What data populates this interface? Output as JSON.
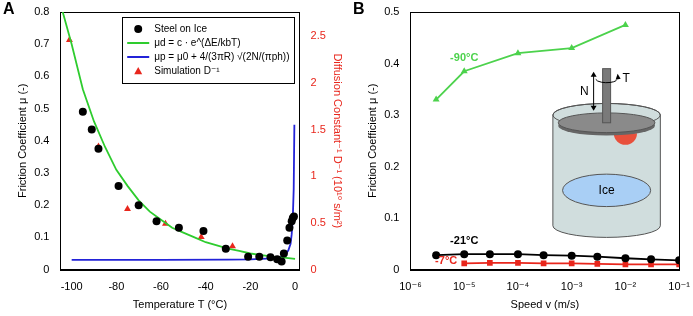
{
  "chart_data": [
    {
      "type": "scatter",
      "title": "A",
      "x_label": "Temperature T (°C)",
      "y_label": "Friction Coefficient μ (-)",
      "y2_label": "Diffusion Constant⁻¹ D⁻¹ (10¹⁰ s/m²)",
      "xlim": [
        -105,
        2
      ],
      "xticks": [
        -100,
        -80,
        -60,
        -40,
        -20,
        0
      ],
      "ylim": [
        0,
        0.8
      ],
      "yticks": [
        0,
        0.1,
        0.2,
        0.3,
        0.4,
        0.5,
        0.6,
        0.7,
        0.8
      ],
      "y2lim": [
        0,
        2.76
      ],
      "y2ticks": [
        0,
        0.5,
        1,
        1.5,
        2,
        2.5
      ],
      "grid": false,
      "legend": "upper right",
      "series": [
        {
          "name": "Steel on Ice",
          "type": "scatter",
          "color": "#000000",
          "marker": "circle",
          "x": [
            -95,
            -91,
            -88,
            -79,
            -70,
            -62,
            -52,
            -41,
            -31,
            -21,
            -16,
            -11,
            -8,
            -6,
            -5,
            -3.5,
            -2.5,
            -1.5,
            -1,
            -0.5
          ],
          "values": [
            0.49,
            0.435,
            0.375,
            0.26,
            0.2,
            0.15,
            0.13,
            0.12,
            0.065,
            0.04,
            0.04,
            0.038,
            0.032,
            0.025,
            0.05,
            0.09,
            0.13,
            0.15,
            0.16,
            0.165
          ]
        },
        {
          "name": "μd = c · e^(ΔE/kbT)",
          "type": "line",
          "color": "#2ecc2e",
          "marker": "none",
          "line_style": "solid",
          "x": [
            -104,
            -100,
            -95,
            -90,
            -85,
            -80,
            -75,
            -70,
            -65,
            -60,
            -55,
            -50,
            -45,
            -40,
            -35,
            -30,
            -25,
            -20,
            -15,
            -10,
            -5,
            0
          ],
          "values": [
            0.8,
            0.7,
            0.56,
            0.46,
            0.38,
            0.31,
            0.26,
            0.215,
            0.18,
            0.155,
            0.13,
            0.115,
            0.1,
            0.085,
            0.075,
            0.065,
            0.058,
            0.05,
            0.045,
            0.04,
            0.037,
            0.033
          ]
        },
        {
          "name": "μp = μ0 + 4/(3πR) √(2N/(πph))",
          "type": "line",
          "color": "#2323d8",
          "marker": "none",
          "line_style": "solid",
          "x": [
            -100,
            -60,
            -30,
            -20,
            -10,
            -6,
            -4,
            -3,
            -2,
            -1.5,
            -1,
            -0.6,
            -0.3
          ],
          "values": [
            0.03,
            0.03,
            0.031,
            0.032,
            0.035,
            0.04,
            0.05,
            0.06,
            0.08,
            0.11,
            0.16,
            0.25,
            0.45
          ]
        },
        {
          "name": "Simulation D⁻¹",
          "type": "scatter",
          "color": "#e8261c",
          "marker": "triangle",
          "axis": "y2",
          "x": [
            -101,
            -88,
            -75,
            -58,
            -42,
            -28
          ],
          "values": [
            2.46,
            1.32,
            0.65,
            0.49,
            0.35,
            0.25
          ]
        }
      ]
    },
    {
      "type": "line",
      "title": "B",
      "x_label": "Speed v (m/s)",
      "y_label": "Friction Coefficient μ (-)",
      "log": "x",
      "xlim": [
        1e-06,
        0.1
      ],
      "xticks": [
        {
          "value": 1e-06,
          "label": "10⁻⁶"
        },
        {
          "value": 1e-05,
          "label": "10⁻⁵"
        },
        {
          "value": 0.0001,
          "label": "10⁻⁴"
        },
        {
          "value": 0.001,
          "label": "10⁻³"
        },
        {
          "value": 0.01,
          "label": "10⁻²"
        },
        {
          "value": 0.1,
          "label": "10⁻¹"
        }
      ],
      "ylim": [
        0,
        0.5
      ],
      "yticks": [
        0,
        0.1,
        0.2,
        0.3,
        0.4,
        0.5
      ],
      "grid": false,
      "annotations": [
        {
          "text": "N"
        },
        {
          "text": "T"
        },
        {
          "text": "Ice"
        }
      ],
      "series": [
        {
          "name": "-90°C",
          "color": "#4cd24c",
          "marker": "triangle",
          "line_style": "solid",
          "x": [
            3e-06,
            1e-05,
            0.0001,
            0.001,
            0.01
          ],
          "values": [
            0.33,
            0.385,
            0.42,
            0.43,
            0.475
          ]
        },
        {
          "name": "-21°C",
          "color": "#000000",
          "marker": "circle",
          "line_style": "solid",
          "x": [
            3e-06,
            1e-05,
            3e-05,
            0.0001,
            0.0003,
            0.001,
            0.003,
            0.01,
            0.03,
            0.1
          ],
          "values": [
            0.028,
            0.03,
            0.03,
            0.03,
            0.028,
            0.027,
            0.025,
            0.022,
            0.02,
            0.018
          ]
        },
        {
          "name": "-7°C",
          "color": "#e8261c",
          "marker": "square",
          "line_style": "solid",
          "x": [
            1e-05,
            3e-05,
            0.0001,
            0.0003,
            0.001,
            0.003,
            0.01,
            0.03,
            0.1
          ],
          "values": [
            0.012,
            0.013,
            0.013,
            0.012,
            0.012,
            0.011,
            0.01,
            0.01,
            0.01
          ]
        }
      ]
    }
  ]
}
